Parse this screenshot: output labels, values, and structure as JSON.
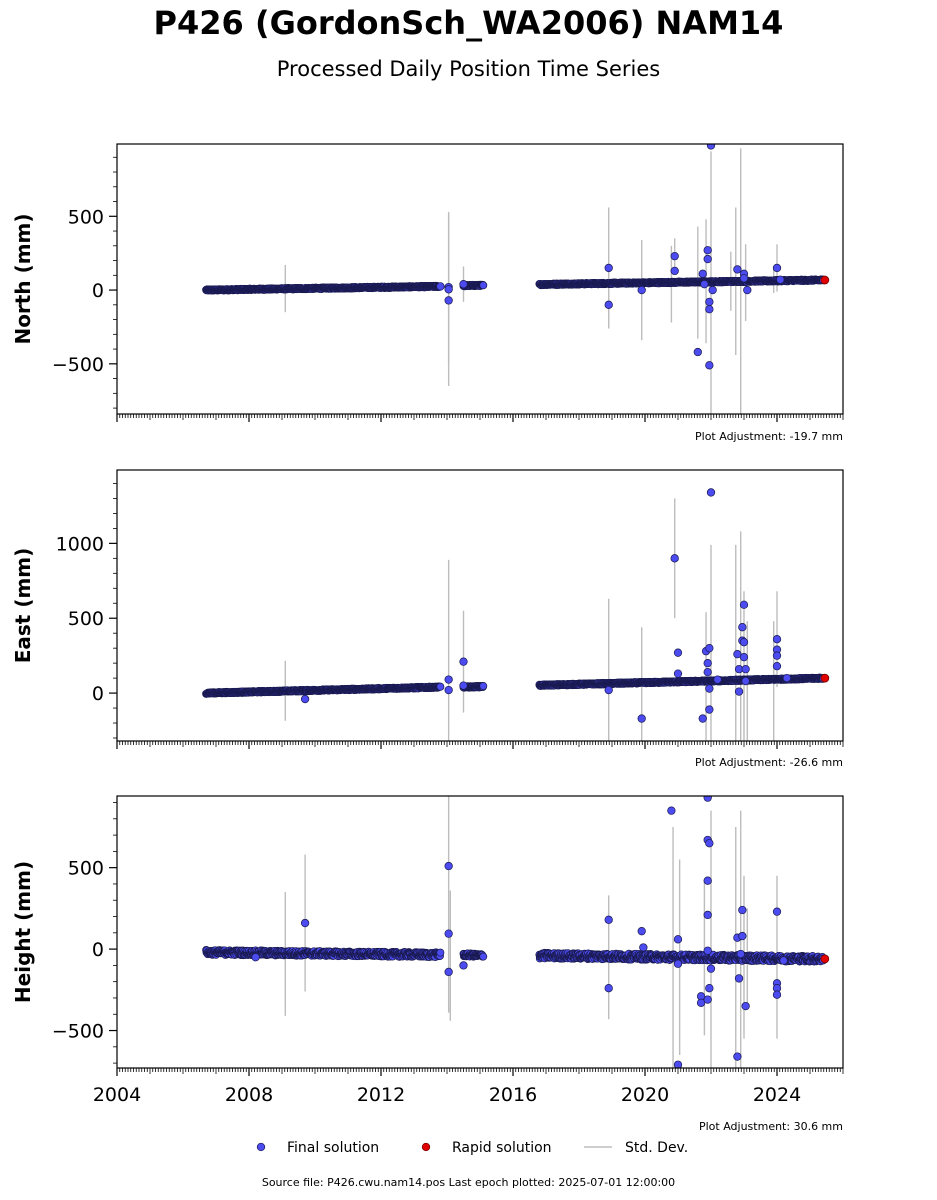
{
  "title": "P426 (GordonSch_WA2006) NAM14",
  "subtitle": "Processed Daily Position Time Series",
  "source_line": "Source file: P426.cwu.nam14.pos  Last epoch plotted: 2025-07-01 12:00:00",
  "colors": {
    "final": "#4b4bef",
    "final_edge": "#1a1a50",
    "rapid": "#e00000",
    "stddev": "#bdbdbd"
  },
  "legend": {
    "final_label": "Final solution",
    "rapid_label": "Rapid solution",
    "stddev_label": "Std. Dev."
  },
  "chart_data": [
    {
      "type": "scatter",
      "ylabel": "North (mm)",
      "adjustment": "Plot Adjustment: -19.7 mm",
      "xlim": [
        2004,
        2026
      ],
      "ylim": [
        -840,
        990
      ],
      "yticks": [
        -500,
        0,
        500
      ],
      "ytick_labels": [
        "−500",
        "0",
        "500"
      ],
      "trend": [
        {
          "x0": 2006.7,
          "x1": 2013.8,
          "y0": 0,
          "y1": 25
        },
        {
          "x0": 2014.5,
          "x1": 2015.1,
          "y0": 30,
          "y1": 32
        },
        {
          "x0": 2016.8,
          "x1": 2025.4,
          "y0": 38,
          "y1": 68
        }
      ],
      "outliers": [
        {
          "x": 2014.05,
          "y": 20,
          "err": 510
        },
        {
          "x": 2014.05,
          "y": -70,
          "err": 580
        },
        {
          "x": 2014.05,
          "y": 5,
          "err": 0
        },
        {
          "x": 2013.8,
          "y": 25,
          "err": 0
        },
        {
          "x": 2014.5,
          "y": 40,
          "err": 120
        },
        {
          "x": 2018.9,
          "y": 150,
          "err": 410
        },
        {
          "x": 2018.9,
          "y": -100,
          "err": 160
        },
        {
          "x": 2019.9,
          "y": 0,
          "err": 340
        },
        {
          "x": 2020.9,
          "y": 230,
          "err": 120
        },
        {
          "x": 2020.9,
          "y": 130,
          "err": 0
        },
        {
          "x": 2021.6,
          "y": -420,
          "err": 0
        },
        {
          "x": 2021.75,
          "y": 110,
          "err": 0
        },
        {
          "x": 2021.9,
          "y": 270,
          "err": 0
        },
        {
          "x": 2021.9,
          "y": 210,
          "err": 0
        },
        {
          "x": 2021.95,
          "y": -80,
          "err": 0
        },
        {
          "x": 2021.95,
          "y": -130,
          "err": 0
        },
        {
          "x": 2021.95,
          "y": -510,
          "err": 0
        },
        {
          "x": 2022.0,
          "y": 980,
          "err": 0
        },
        {
          "x": 2021.8,
          "y": 40,
          "err": 0
        },
        {
          "x": 2022.05,
          "y": 0,
          "err": 0
        },
        {
          "x": 2022.8,
          "y": 140,
          "err": 0
        },
        {
          "x": 2023.0,
          "y": 110,
          "err": 0
        },
        {
          "x": 2023.0,
          "y": 80,
          "err": 0
        },
        {
          "x": 2023.1,
          "y": 0,
          "err": 0
        },
        {
          "x": 2024.0,
          "y": 150,
          "err": 160
        },
        {
          "x": 2024.1,
          "y": 70,
          "err": 0
        }
      ],
      "error_bars": [
        {
          "x": 2009.1,
          "y": 10,
          "err": 160
        },
        {
          "x": 2020.8,
          "y": 40,
          "err": 260
        },
        {
          "x": 2021.6,
          "y": 50,
          "err": 380
        },
        {
          "x": 2021.85,
          "y": 60,
          "err": 420
        },
        {
          "x": 2022.0,
          "y": 40,
          "err": 900
        },
        {
          "x": 2022.9,
          "y": 60,
          "err": 900
        },
        {
          "x": 2022.75,
          "y": 60,
          "err": 500
        },
        {
          "x": 2023.05,
          "y": 50,
          "err": 260
        },
        {
          "x": 2022.6,
          "y": 60,
          "err": 200
        },
        {
          "x": 2023.9,
          "y": 70,
          "err": 90
        }
      ],
      "rapid": [
        {
          "x": 2025.45,
          "y": 68
        }
      ]
    },
    {
      "type": "scatter",
      "ylabel": "East (mm)",
      "adjustment": "Plot Adjustment: -26.6 mm",
      "xlim": [
        2004,
        2026
      ],
      "ylim": [
        -320,
        1490
      ],
      "yticks": [
        0,
        500,
        1000
      ],
      "ytick_labels": [
        "0",
        "500",
        "1000"
      ],
      "trend": [
        {
          "x0": 2006.7,
          "x1": 2013.8,
          "y0": 0,
          "y1": 40
        },
        {
          "x0": 2014.5,
          "x1": 2015.1,
          "y0": 40,
          "y1": 44
        },
        {
          "x0": 2016.8,
          "x1": 2025.4,
          "y0": 52,
          "y1": 100
        }
      ],
      "outliers": [
        {
          "x": 2009.7,
          "y": -40,
          "err": 0
        },
        {
          "x": 2014.05,
          "y": 90,
          "err": 800
        },
        {
          "x": 2014.05,
          "y": 20,
          "err": 0
        },
        {
          "x": 2014.5,
          "y": 210,
          "err": 340
        },
        {
          "x": 2014.5,
          "y": 50,
          "err": 0
        },
        {
          "x": 2018.9,
          "y": 20,
          "err": 610
        },
        {
          "x": 2019.9,
          "y": -170,
          "err": 610
        },
        {
          "x": 2020.9,
          "y": 900,
          "err": 400
        },
        {
          "x": 2021.0,
          "y": 270,
          "err": 0
        },
        {
          "x": 2021.0,
          "y": 130,
          "err": 0
        },
        {
          "x": 2021.75,
          "y": -170,
          "err": 0
        },
        {
          "x": 2021.85,
          "y": 280,
          "err": 0
        },
        {
          "x": 2021.9,
          "y": 200,
          "err": 0
        },
        {
          "x": 2021.9,
          "y": 140,
          "err": 0
        },
        {
          "x": 2021.95,
          "y": 300,
          "err": 0
        },
        {
          "x": 2021.95,
          "y": 30,
          "err": 0
        },
        {
          "x": 2021.95,
          "y": -110,
          "err": 0
        },
        {
          "x": 2022.0,
          "y": 1340,
          "err": 0
        },
        {
          "x": 2022.2,
          "y": 90,
          "err": 0
        },
        {
          "x": 2022.8,
          "y": 260,
          "err": 0
        },
        {
          "x": 2022.85,
          "y": 160,
          "err": 0
        },
        {
          "x": 2022.85,
          "y": 10,
          "err": 0
        },
        {
          "x": 2022.95,
          "y": 440,
          "err": 0
        },
        {
          "x": 2022.95,
          "y": 350,
          "err": 0
        },
        {
          "x": 2023.0,
          "y": 590,
          "err": 0
        },
        {
          "x": 2023.0,
          "y": 340,
          "err": 0
        },
        {
          "x": 2023.0,
          "y": 240,
          "err": 0
        },
        {
          "x": 2023.05,
          "y": 160,
          "err": 0
        },
        {
          "x": 2023.05,
          "y": 80,
          "err": 0
        },
        {
          "x": 2024.0,
          "y": 360,
          "err": 320
        },
        {
          "x": 2024.0,
          "y": 290,
          "err": 0
        },
        {
          "x": 2024.0,
          "y": 250,
          "err": 0
        },
        {
          "x": 2024.0,
          "y": 180,
          "err": 0
        },
        {
          "x": 2024.3,
          "y": 100,
          "err": 0
        }
      ],
      "error_bars": [
        {
          "x": 2009.1,
          "y": 15,
          "err": 200
        },
        {
          "x": 2021.85,
          "y": 90,
          "err": 450
        },
        {
          "x": 2022.0,
          "y": 90,
          "err": 900
        },
        {
          "x": 2022.75,
          "y": 90,
          "err": 900
        },
        {
          "x": 2022.9,
          "y": 80,
          "err": 1000
        },
        {
          "x": 2023.0,
          "y": 80,
          "err": 600
        },
        {
          "x": 2023.1,
          "y": 80,
          "err": 400
        },
        {
          "x": 2023.9,
          "y": 80,
          "err": 400
        }
      ],
      "rapid": [
        {
          "x": 2025.45,
          "y": 100
        }
      ]
    },
    {
      "type": "scatter",
      "ylabel": "Height (mm)",
      "adjustment": "Plot Adjustment: 30.6 mm",
      "xlim": [
        2004,
        2026
      ],
      "ylim": [
        -730,
        940
      ],
      "yticks": [
        -500,
        0,
        500
      ],
      "ytick_labels": [
        "−500",
        "0",
        "500"
      ],
      "xtick_labels": [
        "2004",
        "2008",
        "2012",
        "2016",
        "2020",
        "2024"
      ],
      "trend": [
        {
          "x0": 2006.7,
          "x1": 2013.8,
          "y0": -20,
          "y1": -35,
          "noise": 15
        },
        {
          "x0": 2014.5,
          "x1": 2015.1,
          "y0": -35,
          "y1": -40,
          "noise": 10
        },
        {
          "x0": 2016.8,
          "x1": 2025.4,
          "y0": -40,
          "y1": -60,
          "noise": 18
        }
      ],
      "outliers": [
        {
          "x": 2008.2,
          "y": -50,
          "err": 0
        },
        {
          "x": 2009.7,
          "y": 160,
          "err": 420
        },
        {
          "x": 2014.05,
          "y": 510,
          "err": 900
        },
        {
          "x": 2014.05,
          "y": 95,
          "err": 0
        },
        {
          "x": 2014.05,
          "y": -140,
          "err": 0
        },
        {
          "x": 2014.5,
          "y": -100,
          "err": 0
        },
        {
          "x": 2018.9,
          "y": 180,
          "err": 0
        },
        {
          "x": 2018.9,
          "y": -240,
          "err": 0
        },
        {
          "x": 2019.9,
          "y": 110,
          "err": 0
        },
        {
          "x": 2019.95,
          "y": 10,
          "err": 0
        },
        {
          "x": 2020.8,
          "y": 850,
          "err": 0
        },
        {
          "x": 2021.0,
          "y": 60,
          "err": 0
        },
        {
          "x": 2021.0,
          "y": -710,
          "err": 0
        },
        {
          "x": 2021.0,
          "y": -90,
          "err": 0
        },
        {
          "x": 2021.7,
          "y": -290,
          "err": 0
        },
        {
          "x": 2021.7,
          "y": -330,
          "err": 0
        },
        {
          "x": 2021.9,
          "y": 930,
          "err": 0
        },
        {
          "x": 2021.9,
          "y": 670,
          "err": 0
        },
        {
          "x": 2021.95,
          "y": 650,
          "err": 0
        },
        {
          "x": 2021.9,
          "y": 420,
          "err": 0
        },
        {
          "x": 2021.9,
          "y": 210,
          "err": 0
        },
        {
          "x": 2021.9,
          "y": -10,
          "err": 0
        },
        {
          "x": 2021.95,
          "y": -240,
          "err": 0
        },
        {
          "x": 2021.9,
          "y": -310,
          "err": 0
        },
        {
          "x": 2022.0,
          "y": -120,
          "err": 0
        },
        {
          "x": 2022.8,
          "y": -660,
          "err": 0
        },
        {
          "x": 2022.8,
          "y": 70,
          "err": 0
        },
        {
          "x": 2022.85,
          "y": -180,
          "err": 0
        },
        {
          "x": 2022.95,
          "y": 240,
          "err": 0
        },
        {
          "x": 2022.95,
          "y": 80,
          "err": 0
        },
        {
          "x": 2023.05,
          "y": -350,
          "err": 0
        },
        {
          "x": 2022.9,
          "y": -30,
          "err": 0
        },
        {
          "x": 2024.0,
          "y": 230,
          "err": 0
        },
        {
          "x": 2024.0,
          "y": -210,
          "err": 0
        },
        {
          "x": 2024.0,
          "y": -240,
          "err": 0
        },
        {
          "x": 2024.0,
          "y": -280,
          "err": 0
        },
        {
          "x": 2024.2,
          "y": -70,
          "err": 0
        }
      ],
      "error_bars": [
        {
          "x": 2009.1,
          "y": -30,
          "err": 380
        },
        {
          "x": 2014.1,
          "y": -40,
          "err": 400
        },
        {
          "x": 2018.9,
          "y": -50,
          "err": 380
        },
        {
          "x": 2020.85,
          "y": -50,
          "err": 800
        },
        {
          "x": 2021.05,
          "y": -50,
          "err": 600
        },
        {
          "x": 2021.8,
          "y": -50,
          "err": 480
        },
        {
          "x": 2022.0,
          "y": -50,
          "err": 900
        },
        {
          "x": 2022.75,
          "y": -50,
          "err": 800
        },
        {
          "x": 2022.9,
          "y": -50,
          "err": 900
        },
        {
          "x": 2023.0,
          "y": -50,
          "err": 500
        },
        {
          "x": 2023.1,
          "y": -50,
          "err": 300
        },
        {
          "x": 2024.0,
          "y": -50,
          "err": 500
        }
      ],
      "rapid": [
        {
          "x": 2025.45,
          "y": -60
        }
      ]
    }
  ]
}
